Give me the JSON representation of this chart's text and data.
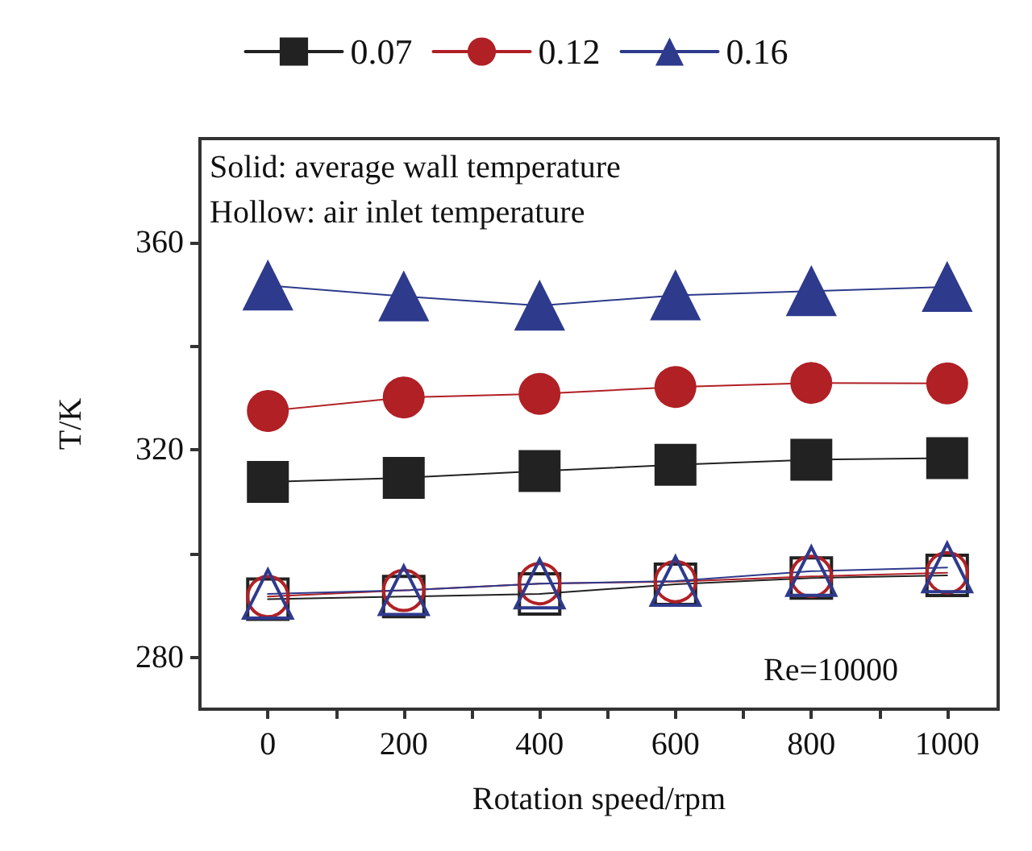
{
  "chart_data": {
    "type": "line",
    "xlabel": "Rotation speed/rpm",
    "ylabel": "T/K",
    "x": [
      0,
      200,
      400,
      600,
      800,
      1000
    ],
    "series": [
      {
        "name": "0.07",
        "color": "#222222",
        "marker": "square",
        "values": [
          313.8,
          314.6,
          315.9,
          317.1,
          318.1,
          318.4
        ]
      },
      {
        "name": "0.12",
        "color": "#b02025",
        "marker": "circle",
        "values": [
          327.5,
          330.1,
          330.8,
          332.1,
          332.9,
          332.8
        ]
      },
      {
        "name": "0.16",
        "color": "#2e3a8c",
        "marker": "triangle",
        "values": [
          351.7,
          349.6,
          347.8,
          349.8,
          350.6,
          351.4
        ]
      },
      {
        "color": "#222222",
        "marker": "square",
        "values": [
          291.2,
          291.7,
          292.2,
          294.1,
          295.3,
          295.8
        ]
      },
      {
        "color": "#b02025",
        "marker": "circle",
        "values": [
          291.7,
          292.9,
          294.2,
          294.6,
          295.6,
          296.3
        ]
      },
      {
        "color": "#2e3a8c",
        "marker": "triangle",
        "values": [
          292.2,
          292.9,
          294.2,
          294.7,
          296.6,
          297.3
        ]
      }
    ],
    "xlim": [
      -100,
      1075
    ],
    "xticks": [
      0,
      {
        "value": 100,
        "label": null
      },
      200,
      {
        "value": 300,
        "label": null
      },
      400,
      {
        "value": 500,
        "label": null
      },
      600,
      {
        "value": 700,
        "label": null
      },
      800,
      {
        "value": 900,
        "label": null
      },
      1000
    ],
    "ylim": [
      270,
      380
    ],
    "yticks": [
      280,
      {
        "value": 300,
        "label": null
      },
      320,
      {
        "value": 340,
        "label": null
      },
      360
    ],
    "annotations": [
      "Solid: average wall temperature",
      "Hollow: air inlet temperature",
      "Re=10000"
    ],
    "grid": false,
    "legend": "top",
    "line_style": "solid"
  }
}
